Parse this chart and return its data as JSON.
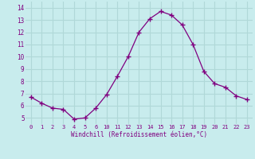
{
  "x_values": [
    0,
    1,
    2,
    3,
    4,
    5,
    6,
    10,
    11,
    12,
    13,
    14,
    15,
    16,
    17,
    18,
    19,
    20,
    21,
    22,
    23
  ],
  "y_values": [
    6.7,
    6.2,
    5.8,
    5.7,
    4.9,
    5.0,
    5.8,
    6.9,
    8.4,
    10.0,
    12.0,
    13.1,
    13.7,
    13.4,
    12.6,
    11.0,
    8.8,
    7.8,
    7.5,
    6.8,
    6.5
  ],
  "line_color": "#800080",
  "marker_color": "#800080",
  "bg_color": "#c8eced",
  "plot_bg_color": "#c8eced",
  "grid_color": "#b0d8d8",
  "xlabel": "Windchill (Refroidissement éolien,°C)",
  "xlabel_color": "#800080",
  "tick_color": "#800080",
  "ylim": [
    4.5,
    14.5
  ],
  "yticks": [
    5,
    6,
    7,
    8,
    9,
    10,
    11,
    12,
    13,
    14
  ],
  "xtick_positions": [
    0,
    1,
    2,
    3,
    4,
    5,
    6,
    10,
    11,
    12,
    13,
    14,
    15,
    16,
    17,
    18,
    19,
    20,
    21,
    22,
    23
  ],
  "xtick_labels": [
    "0",
    "1",
    "2",
    "3",
    "4",
    "5",
    "6",
    "10",
    "11",
    "12",
    "13",
    "14",
    "15",
    "16",
    "17",
    "18",
    "19",
    "20",
    "21",
    "22",
    "23"
  ]
}
